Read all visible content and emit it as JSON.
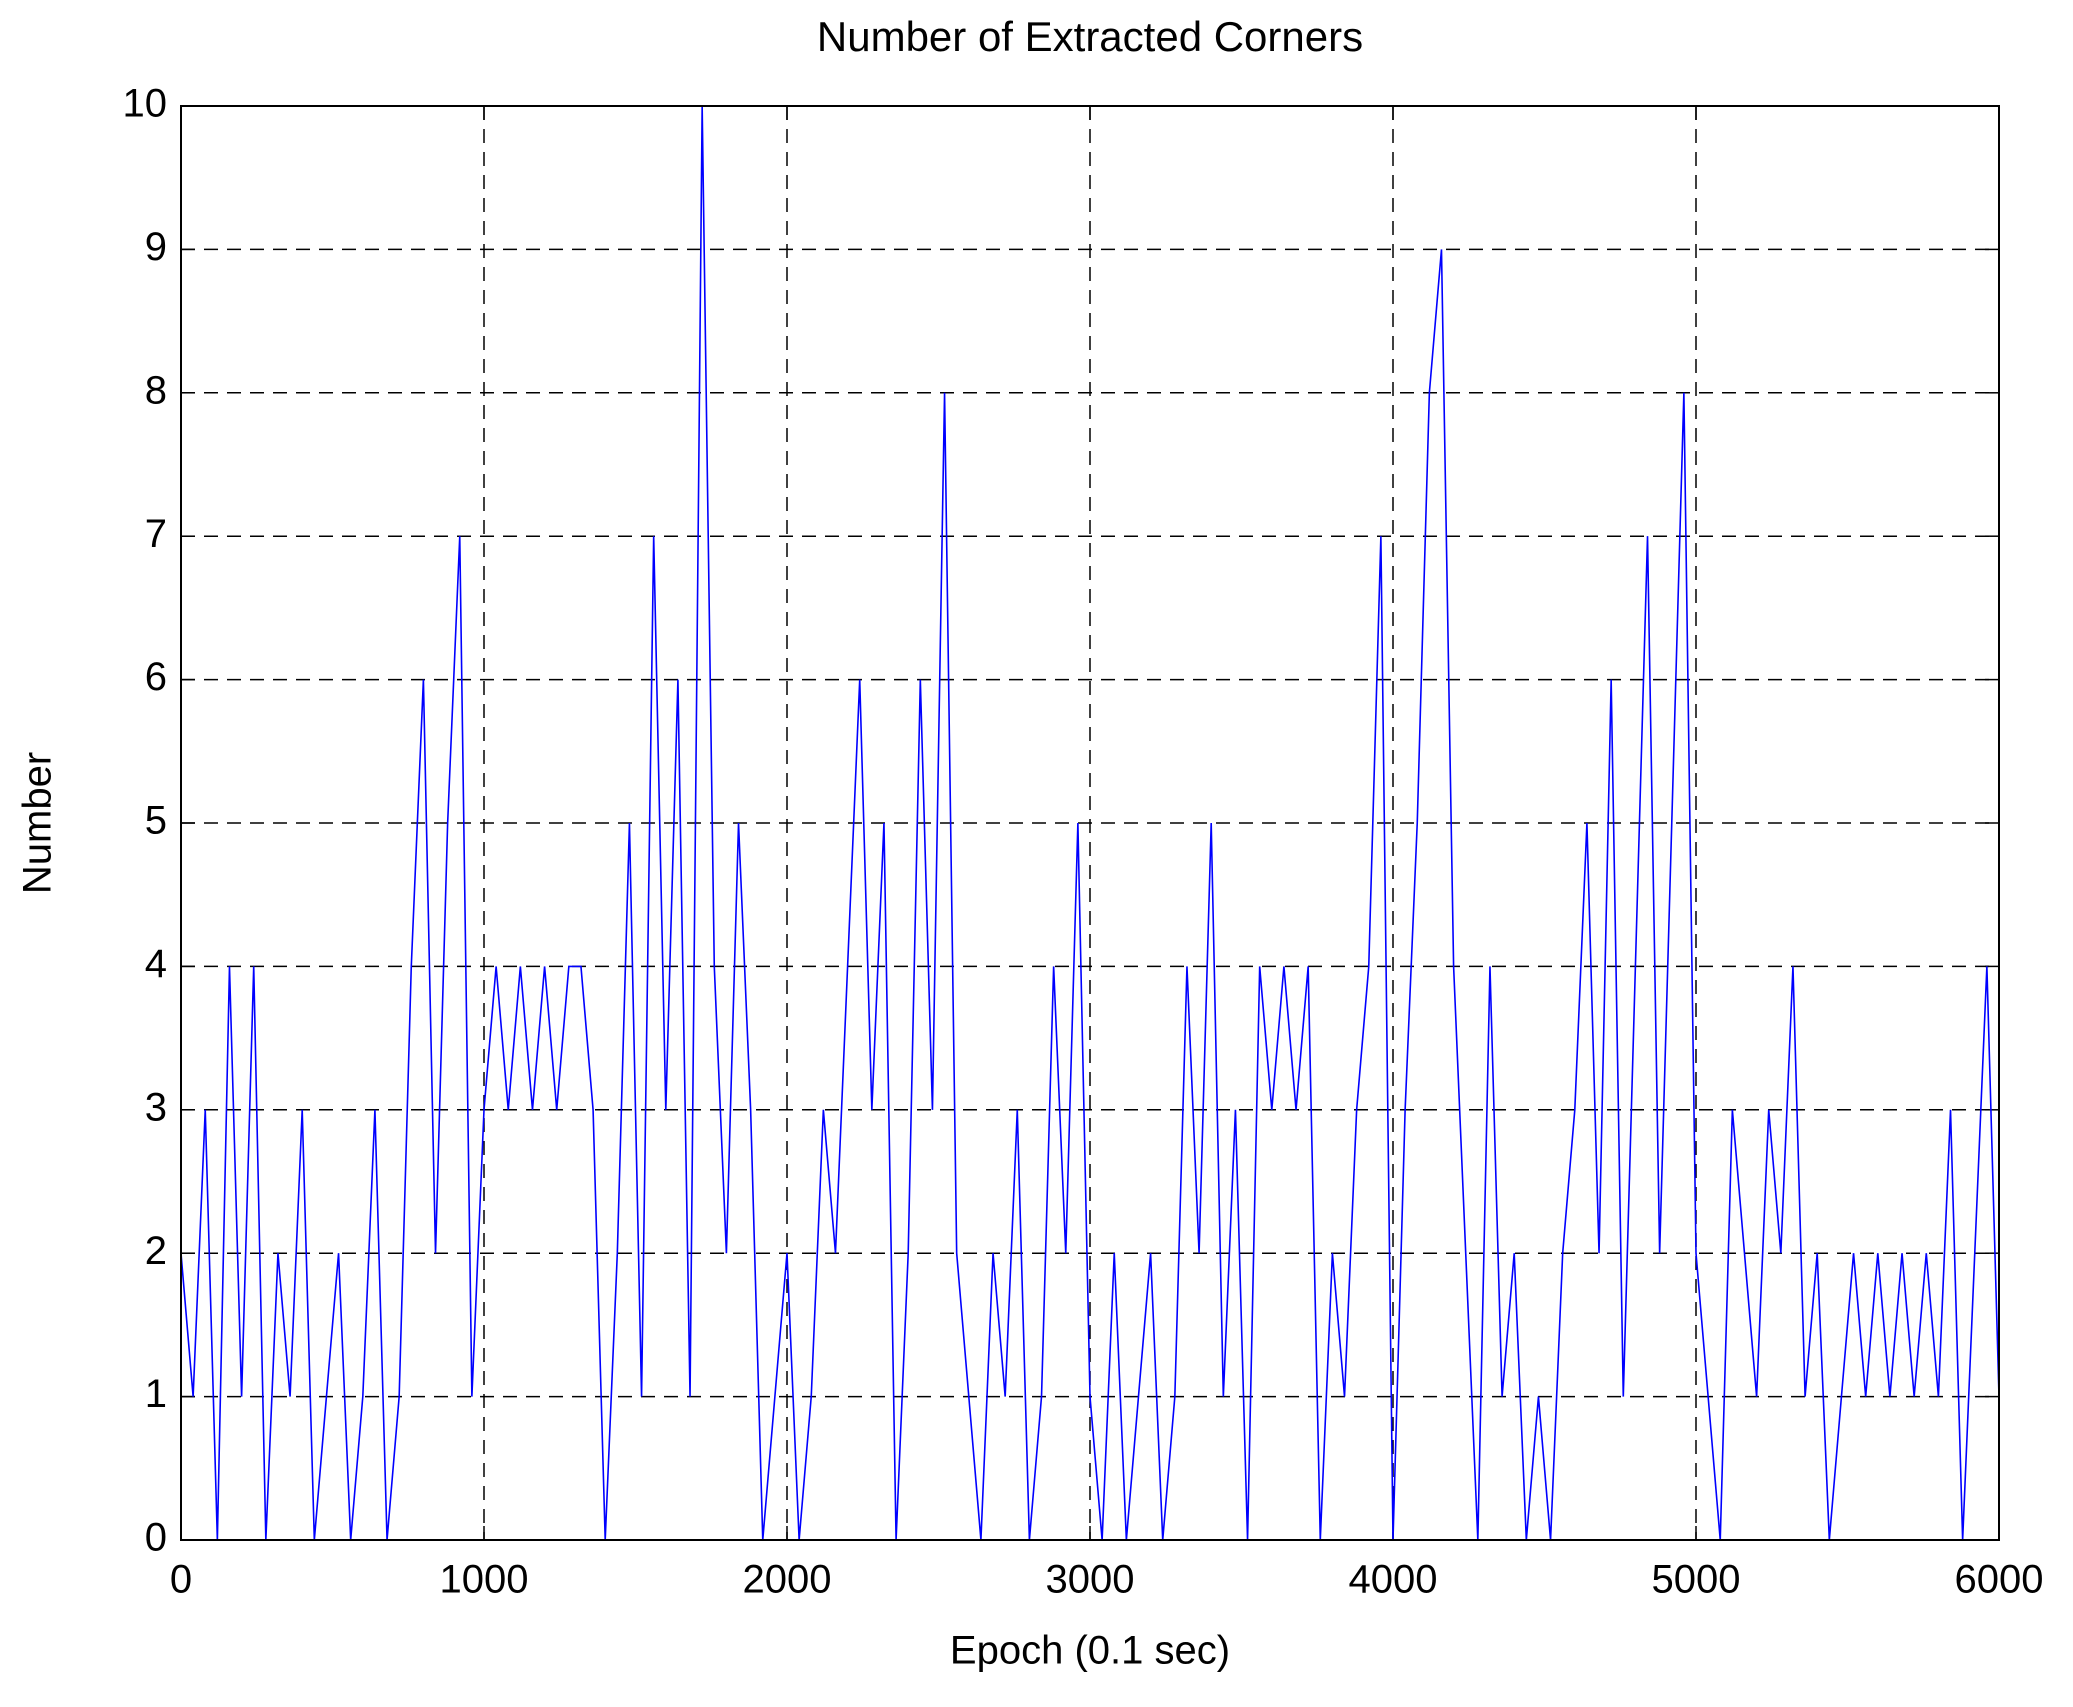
{
  "chart_data": {
    "type": "line",
    "title": "Number of Extracted Corners",
    "x_label": "Epoch (0.1 sec)",
    "y_label": "Number",
    "x": [
      0,
      40,
      80,
      120,
      160,
      200,
      240,
      280,
      320,
      360,
      400,
      440,
      480,
      520,
      560,
      600,
      640,
      680,
      720,
      760,
      800,
      840,
      880,
      920,
      960,
      1000,
      1040,
      1080,
      1120,
      1160,
      1200,
      1240,
      1280,
      1320,
      1360,
      1400,
      1440,
      1480,
      1520,
      1560,
      1600,
      1640,
      1680,
      1720,
      1760,
      1800,
      1840,
      1880,
      1920,
      1960,
      2000,
      2040,
      2080,
      2120,
      2160,
      2200,
      2240,
      2280,
      2320,
      2360,
      2400,
      2440,
      2480,
      2520,
      2560,
      2600,
      2640,
      2680,
      2720,
      2760,
      2800,
      2840,
      2880,
      2920,
      2960,
      3000,
      3040,
      3080,
      3120,
      3160,
      3200,
      3240,
      3280,
      3320,
      3360,
      3400,
      3440,
      3480,
      3520,
      3560,
      3600,
      3640,
      3680,
      3720,
      3760,
      3800,
      3840,
      3880,
      3920,
      3960,
      4000,
      4040,
      4080,
      4120,
      4160,
      4200,
      4240,
      4280,
      4320,
      4360,
      4400,
      4440,
      4480,
      4520,
      4560,
      4600,
      4640,
      4680,
      4720,
      4760,
      4800,
      4840,
      4880,
      4920,
      4960,
      5000,
      5040,
      5080,
      5120,
      5160,
      5200,
      5240,
      5280,
      5320,
      5360,
      5400,
      5440,
      5480,
      5520,
      5560,
      5600,
      5640,
      5680,
      5720,
      5760,
      5800,
      5840,
      5880,
      5920,
      5960,
      6000
    ],
    "series": [
      {
        "color": "#0000ff",
        "values": [
          2,
          1,
          3,
          0,
          4,
          1,
          4,
          0,
          2,
          1,
          3,
          0,
          1,
          2,
          0,
          1,
          3,
          0,
          1,
          4,
          6,
          2,
          5,
          7,
          1,
          3,
          4,
          3,
          4,
          3,
          4,
          3,
          4,
          4,
          3,
          0,
          2,
          5,
          1,
          7,
          3,
          6,
          1,
          10,
          4,
          2,
          5,
          3,
          0,
          1,
          2,
          0,
          1,
          3,
          2,
          4,
          6,
          3,
          5,
          0,
          2,
          6,
          3,
          8,
          2,
          1,
          0,
          2,
          1,
          3,
          0,
          1,
          4,
          2,
          5,
          1,
          0,
          2,
          0,
          1,
          2,
          0,
          1,
          4,
          2,
          5,
          1,
          3,
          0,
          4,
          3,
          4,
          3,
          4,
          0,
          2,
          1,
          3,
          4,
          7,
          0,
          3,
          5,
          8,
          9,
          4,
          2,
          0,
          4,
          1,
          2,
          0,
          1,
          0,
          2,
          3,
          5,
          2,
          6,
          1,
          4,
          7,
          2,
          5,
          8,
          2,
          1,
          0,
          3,
          2,
          1,
          3,
          2,
          4,
          1,
          2,
          0,
          1,
          2,
          1,
          2,
          1,
          2,
          1,
          2,
          1,
          3,
          0,
          2,
          4,
          1
        ]
      }
    ],
    "xlim": [
      0,
      6000
    ],
    "xticks": [
      0,
      1000,
      2000,
      3000,
      4000,
      5000,
      6000
    ],
    "ylim": [
      0,
      10
    ],
    "yticks": [
      0,
      1,
      2,
      3,
      4,
      5,
      6,
      7,
      8,
      9,
      10
    ],
    "grid": true
  }
}
